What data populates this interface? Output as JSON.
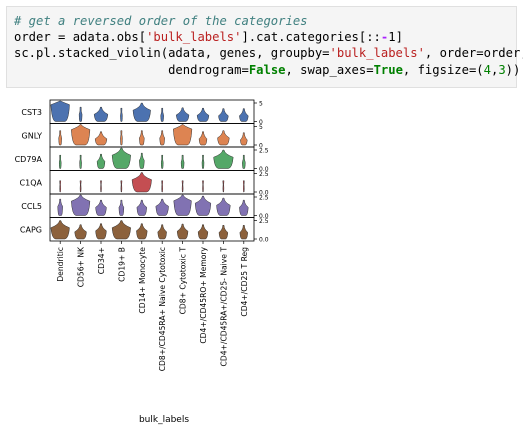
{
  "code_cell": {
    "line1": "# get a reversed order of the categories",
    "line2_a": "order = adata.obs[",
    "line2_str": "'bulk_labels'",
    "line2_b": "].cat.categories[::",
    "line2_minus": "-",
    "line2_c": "1]",
    "line3_a": "sc.pl.stacked_violin(adata, genes, groupby=",
    "line3_str": "'bulk_labels'",
    "line3_b": ", order=order,",
    "line4_pad": "                     ",
    "line4_a": "dendrogram=",
    "line4_false": "False",
    "line4_b": ", swap_axes=",
    "line4_true": "True",
    "line4_c": ", figsize=(",
    "line4_n1": "4",
    "line4_d": ",",
    "line4_n2": "3",
    "line4_e": "))"
  },
  "chart_data": {
    "type": "stacked_violin",
    "xlabel": "bulk_labels",
    "categories": [
      "Dendritic",
      "CD56+ NK",
      "CD34+",
      "CD19+ B",
      "CD14+ Monocyte",
      "CD8+/CD45RA+ Naive Cytotoxic",
      "CD8+ Cytotoxic T",
      "CD4+/CD45RO+ Memory",
      "CD4+/CD45RA+/CD25- Naive T",
      "CD4+/CD25 T Reg"
    ],
    "genes": [
      {
        "name": "CST3",
        "color": "#4c72b0",
        "ticks": [
          "5",
          "0"
        ],
        "ymax": 5,
        "widths": [
          0.95,
          0.15,
          0.7,
          0.1,
          0.9,
          0.15,
          0.65,
          0.6,
          0.5,
          0.45
        ],
        "peaks": [
          0.82,
          0.35,
          0.35,
          0.3,
          0.55,
          0.3,
          0.32,
          0.3,
          0.28,
          0.28
        ]
      },
      {
        "name": "GNLY",
        "color": "#dd8452",
        "ticks": [
          "5",
          "0"
        ],
        "ymax": 5,
        "widths": [
          0.15,
          0.95,
          0.6,
          0.1,
          0.25,
          0.25,
          0.95,
          0.4,
          0.6,
          0.35
        ],
        "peaks": [
          0.35,
          0.75,
          0.3,
          0.35,
          0.35,
          0.35,
          0.78,
          0.3,
          0.35,
          0.25
        ]
      },
      {
        "name": "CD79A",
        "color": "#55a868",
        "ticks": [
          "2.5",
          "0.0"
        ],
        "ymax": 2.5,
        "widths": [
          0.1,
          0.1,
          0.4,
          0.95,
          0.25,
          0.1,
          0.15,
          0.1,
          1.0,
          0.15
        ],
        "peaks": [
          0.3,
          0.3,
          0.35,
          0.65,
          0.4,
          0.3,
          0.3,
          0.3,
          0.55,
          0.3
        ]
      },
      {
        "name": "C1QA",
        "color": "#c44e52",
        "ticks": [
          "2.5",
          "0.0"
        ],
        "ymax": 2.5,
        "widths": [
          0.05,
          0.05,
          0.05,
          0.05,
          1.0,
          0.05,
          0.05,
          0.05,
          0.05,
          0.05
        ],
        "peaks": [
          0.2,
          0.2,
          0.2,
          0.2,
          0.6,
          0.2,
          0.2,
          0.2,
          0.2,
          0.2
        ]
      },
      {
        "name": "CCL5",
        "color": "#8172b2",
        "ticks": [
          "2.5",
          "0.0"
        ],
        "ymax": 2.5,
        "widths": [
          0.25,
          0.95,
          0.55,
          0.25,
          0.5,
          0.65,
          0.9,
          0.8,
          0.7,
          0.45
        ],
        "peaks": [
          0.45,
          0.7,
          0.4,
          0.4,
          0.4,
          0.45,
          0.72,
          0.6,
          0.5,
          0.4
        ]
      },
      {
        "name": "CAPG",
        "color": "#8c613c",
        "ticks": [
          "2.5",
          "0.0"
        ],
        "ymax": 2.5,
        "widths": [
          0.95,
          0.6,
          0.55,
          0.95,
          0.55,
          0.45,
          0.55,
          0.5,
          0.45,
          0.4
        ],
        "peaks": [
          0.55,
          0.35,
          0.4,
          0.55,
          0.4,
          0.35,
          0.38,
          0.35,
          0.32,
          0.32
        ]
      }
    ]
  }
}
